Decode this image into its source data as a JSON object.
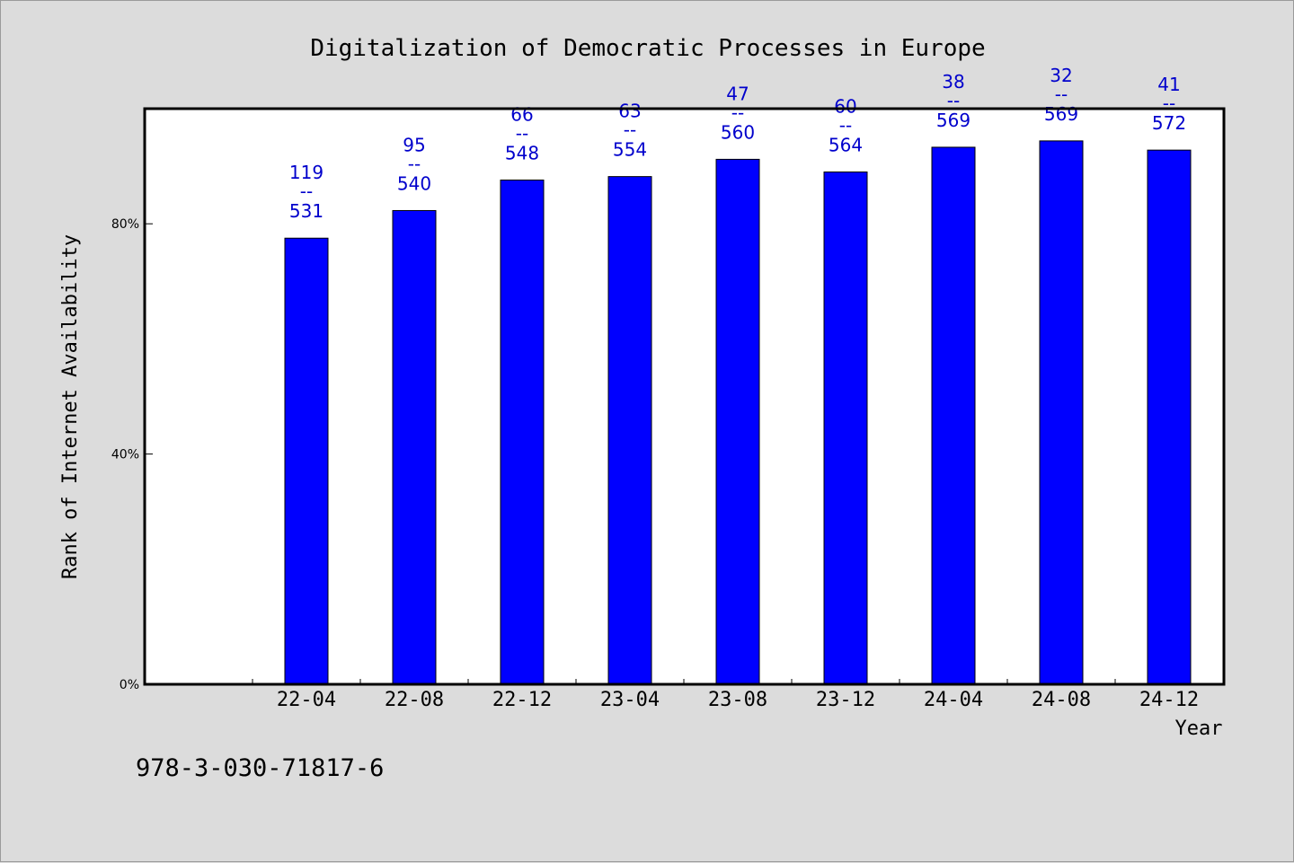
{
  "chart_data": {
    "type": "bar",
    "title": "Digitalization of Democratic Processes in Europe",
    "xlabel": "Year",
    "ylabel": "Rank of Internet Availability",
    "ylim": [
      0,
      100
    ],
    "y_tick_labels": [
      "0%",
      "40%",
      "80%"
    ],
    "y_tick_values": [
      0,
      40,
      80
    ],
    "categories": [
      "22-04",
      "22-08",
      "22-12",
      "23-04",
      "23-08",
      "23-12",
      "24-04",
      "24-08",
      "24-12"
    ],
    "values": [
      77.5,
      82.3,
      87.6,
      88.2,
      91.2,
      89.0,
      93.3,
      94.4,
      92.8
    ],
    "rank_labels": [
      "119",
      "95",
      "66",
      "63",
      "47",
      "60",
      "38",
      "32",
      "41"
    ],
    "total_labels": [
      "531",
      "540",
      "548",
      "554",
      "560",
      "564",
      "569",
      "569",
      "572"
    ],
    "separator": "--",
    "bar_color": "#0000ff",
    "label_color": "#0000cc"
  },
  "footer": {
    "isbn": "978-3-030-71817-6"
  }
}
